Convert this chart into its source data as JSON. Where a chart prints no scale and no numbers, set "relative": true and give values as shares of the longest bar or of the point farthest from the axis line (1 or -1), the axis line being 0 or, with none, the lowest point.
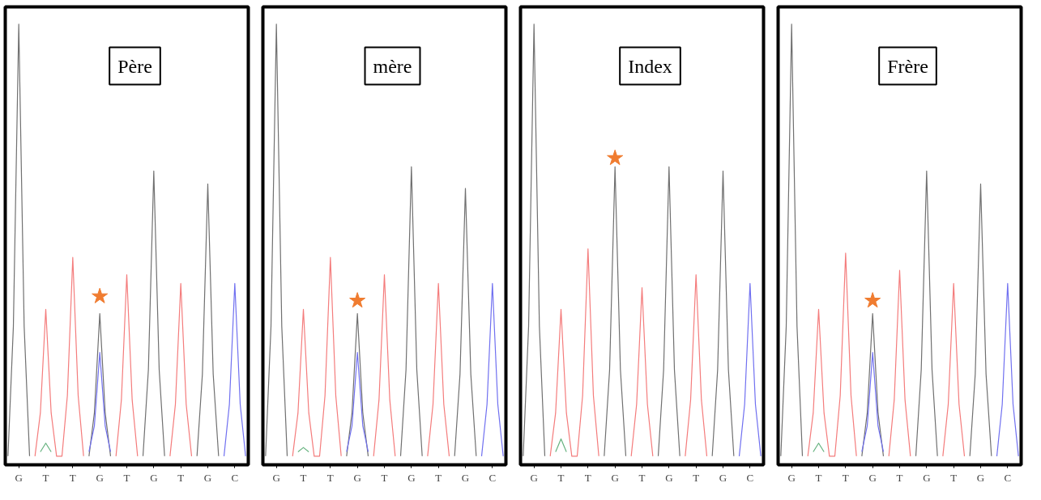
{
  "chart_data": [
    {
      "type": "line",
      "title": "Père",
      "relative": true,
      "categories": [
        null,
        null,
        "G",
        null,
        null,
        null,
        null,
        "T",
        null,
        null,
        null,
        null,
        "T",
        null,
        null,
        null,
        null,
        "G",
        null,
        null,
        null,
        null,
        "T",
        null,
        null,
        null,
        null,
        "G",
        null,
        null,
        null,
        null,
        "T",
        null,
        null,
        null,
        null,
        "G",
        null,
        null,
        null,
        null,
        "C",
        null,
        null
      ],
      "series": [
        {
          "color": "#707070",
          "values": [
            0,
            0.3,
            1,
            0.3,
            0,
            null,
            null,
            null,
            null,
            null,
            null,
            null,
            null,
            null,
            null,
            0,
            0.1,
            0.33,
            0.1,
            0,
            null,
            null,
            null,
            null,
            null,
            0,
            0.2,
            0.66,
            0.2,
            0,
            null,
            null,
            null,
            null,
            null,
            0,
            0.19,
            0.63,
            0.19,
            0,
            null,
            null,
            null,
            null,
            null
          ]
        },
        {
          "color": "#f47c7c",
          "values": [
            null,
            null,
            null,
            null,
            null,
            0,
            0.1,
            0.34,
            0.1,
            0,
            0,
            0.14,
            0.46,
            0.14,
            0,
            null,
            null,
            null,
            null,
            null,
            0,
            0.13,
            0.42,
            0.13,
            0,
            null,
            null,
            null,
            null,
            null,
            0,
            0.12,
            0.4,
            0.12,
            0,
            null,
            null,
            null,
            null,
            null,
            null,
            null,
            null,
            null,
            null
          ]
        },
        {
          "color": "#7070f0",
          "values": [
            null,
            null,
            null,
            null,
            null,
            null,
            null,
            null,
            null,
            null,
            null,
            null,
            null,
            null,
            null,
            0.01,
            0.07,
            0.24,
            0.07,
            0.01,
            null,
            null,
            null,
            null,
            null,
            null,
            null,
            null,
            null,
            null,
            null,
            null,
            null,
            null,
            null,
            null,
            null,
            null,
            null,
            null,
            0,
            0.12,
            0.4,
            0.12,
            0
          ]
        },
        {
          "color": "#66b27f",
          "values": [
            null,
            null,
            null,
            null,
            null,
            null,
            0.01,
            0.03,
            0.01,
            null,
            null,
            null,
            null,
            null,
            null,
            null,
            null,
            null,
            null,
            null,
            null,
            null,
            null,
            null,
            null,
            null,
            null,
            null,
            null,
            null,
            null,
            null,
            null,
            null,
            null,
            null,
            null,
            null,
            null,
            null,
            null,
            null,
            null,
            null,
            null
          ]
        },
        {
          "type": "scatter",
          "marker": "star",
          "color": "#f07c30",
          "values": [
            null,
            null,
            null,
            null,
            null,
            null,
            null,
            null,
            null,
            null,
            null,
            null,
            null,
            null,
            null,
            null,
            null,
            0.37,
            null,
            null,
            null,
            null,
            null,
            null,
            null,
            null,
            null,
            null,
            null,
            null,
            null,
            null,
            null,
            null,
            null,
            null,
            null,
            null,
            null,
            null,
            null,
            null,
            null,
            null,
            null
          ]
        }
      ]
    },
    {
      "type": "line",
      "title": "mère",
      "relative": true,
      "categories": [
        null,
        null,
        "G",
        null,
        null,
        null,
        null,
        "T",
        null,
        null,
        null,
        null,
        "T",
        null,
        null,
        null,
        null,
        "G",
        null,
        null,
        null,
        null,
        "T",
        null,
        null,
        null,
        null,
        "G",
        null,
        null,
        null,
        null,
        "T",
        null,
        null,
        null,
        null,
        "G",
        null,
        null,
        null,
        null,
        "C",
        null,
        null
      ],
      "series": [
        {
          "color": "#707070",
          "values": [
            0,
            0.3,
            1,
            0.3,
            0,
            null,
            null,
            null,
            null,
            null,
            null,
            null,
            null,
            null,
            null,
            0,
            0.1,
            0.33,
            0.1,
            0,
            null,
            null,
            null,
            null,
            null,
            0,
            0.2,
            0.67,
            0.2,
            0,
            null,
            null,
            null,
            null,
            null,
            0,
            0.19,
            0.62,
            0.19,
            0,
            null,
            null,
            null,
            null,
            null
          ]
        },
        {
          "color": "#f47c7c",
          "values": [
            null,
            null,
            null,
            null,
            null,
            0,
            0.1,
            0.34,
            0.1,
            0,
            0,
            0.14,
            0.46,
            0.14,
            0,
            null,
            null,
            null,
            null,
            null,
            0,
            0.13,
            0.42,
            0.13,
            0,
            null,
            null,
            null,
            null,
            null,
            0,
            0.12,
            0.4,
            0.12,
            0,
            null,
            null,
            null,
            null,
            null,
            null,
            null,
            null,
            null,
            null
          ]
        },
        {
          "color": "#7070f0",
          "values": [
            null,
            null,
            null,
            null,
            null,
            null,
            null,
            null,
            null,
            null,
            null,
            null,
            null,
            null,
            null,
            0.01,
            0.07,
            0.24,
            0.07,
            0.01,
            null,
            null,
            null,
            null,
            null,
            null,
            null,
            null,
            null,
            null,
            null,
            null,
            null,
            null,
            null,
            null,
            null,
            null,
            null,
            null,
            0,
            0.12,
            0.4,
            0.12,
            0
          ]
        },
        {
          "color": "#66b27f",
          "values": [
            null,
            null,
            null,
            null,
            null,
            null,
            0.01,
            0.02,
            0.01,
            null,
            null,
            null,
            null,
            null,
            null,
            null,
            null,
            null,
            null,
            null,
            null,
            null,
            null,
            null,
            null,
            null,
            null,
            null,
            null,
            null,
            null,
            null,
            null,
            null,
            null,
            null,
            null,
            null,
            null,
            null,
            null,
            null,
            null,
            null,
            null
          ]
        },
        {
          "type": "scatter",
          "marker": "star",
          "color": "#f07c30",
          "values": [
            null,
            null,
            null,
            null,
            null,
            null,
            null,
            null,
            null,
            null,
            null,
            null,
            null,
            null,
            null,
            null,
            null,
            0.36,
            null,
            null,
            null,
            null,
            null,
            null,
            null,
            null,
            null,
            null,
            null,
            null,
            null,
            null,
            null,
            null,
            null,
            null,
            null,
            null,
            null,
            null,
            null,
            null,
            null,
            null,
            null
          ]
        }
      ]
    },
    {
      "type": "line",
      "title": "Index",
      "relative": true,
      "categories": [
        null,
        null,
        "G",
        null,
        null,
        null,
        null,
        "T",
        null,
        null,
        null,
        null,
        "T",
        null,
        null,
        null,
        null,
        "G",
        null,
        null,
        null,
        null,
        "T",
        null,
        null,
        null,
        null,
        "G",
        null,
        null,
        null,
        null,
        "T",
        null,
        null,
        null,
        null,
        "G",
        null,
        null,
        null,
        null,
        "C",
        null,
        null
      ],
      "series": [
        {
          "color": "#707070",
          "values": [
            0,
            0.3,
            1,
            0.3,
            0,
            null,
            null,
            null,
            null,
            null,
            null,
            null,
            null,
            null,
            null,
            0,
            0.2,
            0.67,
            0.2,
            0,
            null,
            null,
            null,
            null,
            null,
            0,
            0.2,
            0.67,
            0.2,
            0,
            null,
            null,
            null,
            null,
            null,
            0,
            0.2,
            0.66,
            0.2,
            0,
            null,
            null,
            null,
            null,
            null
          ]
        },
        {
          "color": "#f47c7c",
          "values": [
            null,
            null,
            null,
            null,
            null,
            0,
            0.1,
            0.34,
            0.1,
            0,
            0,
            0.14,
            0.48,
            0.14,
            0,
            null,
            null,
            null,
            null,
            null,
            0,
            0.12,
            0.39,
            0.12,
            0,
            null,
            null,
            null,
            null,
            null,
            0,
            0.13,
            0.42,
            0.13,
            0,
            null,
            null,
            null,
            null,
            null,
            null,
            null,
            null,
            null,
            null
          ]
        },
        {
          "color": "#7070f0",
          "values": [
            null,
            null,
            null,
            null,
            null,
            null,
            null,
            null,
            null,
            null,
            null,
            null,
            null,
            null,
            null,
            null,
            null,
            null,
            null,
            null,
            null,
            null,
            null,
            null,
            null,
            null,
            null,
            null,
            null,
            null,
            null,
            null,
            null,
            null,
            null,
            null,
            null,
            null,
            null,
            null,
            0,
            0.12,
            0.4,
            0.12,
            0
          ]
        },
        {
          "color": "#66b27f",
          "values": [
            null,
            null,
            null,
            null,
            null,
            null,
            0.01,
            0.04,
            0.01,
            null,
            null,
            null,
            null,
            null,
            null,
            null,
            null,
            null,
            null,
            null,
            null,
            null,
            null,
            null,
            null,
            null,
            null,
            null,
            null,
            null,
            null,
            null,
            null,
            null,
            null,
            null,
            null,
            null,
            null,
            null,
            null,
            null,
            null,
            null,
            null
          ]
        },
        {
          "type": "scatter",
          "marker": "star",
          "color": "#f07c30",
          "values": [
            null,
            null,
            null,
            null,
            null,
            null,
            null,
            null,
            null,
            null,
            null,
            null,
            null,
            null,
            null,
            null,
            null,
            0.69,
            null,
            null,
            null,
            null,
            null,
            null,
            null,
            null,
            null,
            null,
            null,
            null,
            null,
            null,
            null,
            null,
            null,
            null,
            null,
            null,
            null,
            null,
            null,
            null,
            null,
            null,
            null
          ]
        }
      ]
    },
    {
      "type": "line",
      "title": "Frère",
      "relative": true,
      "categories": [
        null,
        null,
        "G",
        null,
        null,
        null,
        null,
        "T",
        null,
        null,
        null,
        null,
        "T",
        null,
        null,
        null,
        null,
        "G",
        null,
        null,
        null,
        null,
        "T",
        null,
        null,
        null,
        null,
        "G",
        null,
        null,
        null,
        null,
        "T",
        null,
        null,
        null,
        null,
        "G",
        null,
        null,
        null,
        null,
        "C",
        null,
        null
      ],
      "series": [
        {
          "color": "#707070",
          "values": [
            0,
            0.3,
            1,
            0.3,
            0,
            null,
            null,
            null,
            null,
            null,
            null,
            null,
            null,
            null,
            null,
            0,
            0.1,
            0.33,
            0.1,
            0,
            null,
            null,
            null,
            null,
            null,
            0,
            0.2,
            0.66,
            0.2,
            0,
            null,
            null,
            null,
            null,
            null,
            0,
            0.19,
            0.63,
            0.19,
            0,
            null,
            null,
            null,
            null,
            null
          ]
        },
        {
          "color": "#f47c7c",
          "values": [
            null,
            null,
            null,
            null,
            null,
            0,
            0.1,
            0.34,
            0.1,
            0,
            0,
            0.14,
            0.47,
            0.14,
            0,
            null,
            null,
            null,
            null,
            null,
            0,
            0.13,
            0.43,
            0.13,
            0,
            null,
            null,
            null,
            null,
            null,
            0,
            0.12,
            0.4,
            0.12,
            0,
            null,
            null,
            null,
            null,
            null,
            null,
            null,
            null,
            null,
            null
          ]
        },
        {
          "color": "#7070f0",
          "values": [
            null,
            null,
            null,
            null,
            null,
            null,
            null,
            null,
            null,
            null,
            null,
            null,
            null,
            null,
            null,
            0.01,
            0.07,
            0.24,
            0.07,
            0.01,
            null,
            null,
            null,
            null,
            null,
            null,
            null,
            null,
            null,
            null,
            null,
            null,
            null,
            null,
            null,
            null,
            null,
            null,
            null,
            null,
            0,
            0.12,
            0.4,
            0.12,
            0
          ]
        },
        {
          "color": "#66b27f",
          "values": [
            null,
            null,
            null,
            null,
            null,
            null,
            0.01,
            0.03,
            0.01,
            null,
            null,
            null,
            null,
            null,
            null,
            null,
            null,
            null,
            null,
            null,
            null,
            null,
            null,
            null,
            null,
            null,
            null,
            null,
            null,
            null,
            null,
            null,
            null,
            null,
            null,
            null,
            null,
            null,
            null,
            null,
            null,
            null,
            null,
            null,
            null
          ]
        },
        {
          "type": "scatter",
          "marker": "star",
          "color": "#f07c30",
          "values": [
            null,
            null,
            null,
            null,
            null,
            null,
            null,
            null,
            null,
            null,
            null,
            null,
            null,
            null,
            null,
            null,
            null,
            0.36,
            null,
            null,
            null,
            null,
            null,
            null,
            null,
            null,
            null,
            null,
            null,
            null,
            null,
            null,
            null,
            null,
            null,
            null,
            null,
            null,
            null,
            null,
            null,
            null,
            null,
            null,
            null
          ]
        }
      ]
    }
  ]
}
